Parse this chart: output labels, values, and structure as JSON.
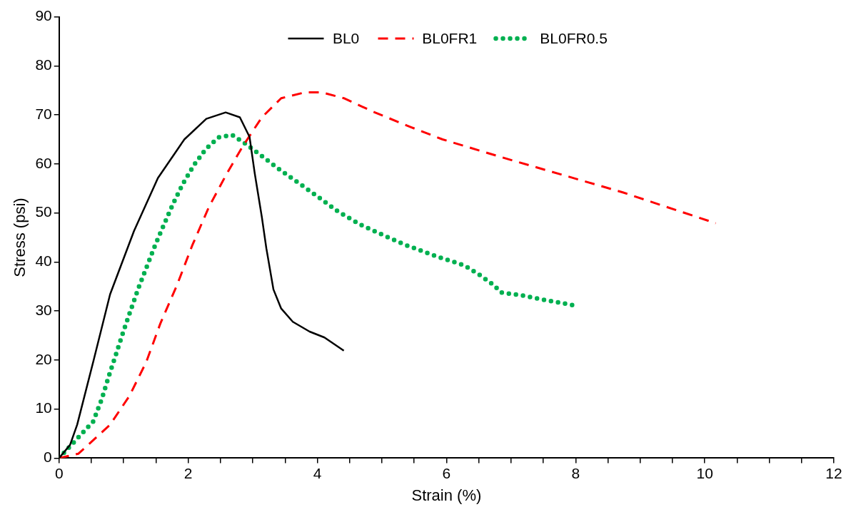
{
  "chart_data": {
    "type": "line",
    "xlabel": "Strain (%)",
    "ylabel": "Stress (psi)",
    "xlim": [
      0,
      12
    ],
    "ylim": [
      0,
      90
    ],
    "xticks": [
      0,
      {
        "value": 0.5,
        "label": null
      },
      {
        "value": 1,
        "label": null
      },
      {
        "value": 1.5,
        "label": null
      },
      2,
      {
        "value": 2.5,
        "label": null
      },
      {
        "value": 3,
        "label": null
      },
      {
        "value": 3.5,
        "label": null
      },
      4,
      {
        "value": 4.5,
        "label": null
      },
      {
        "value": 5,
        "label": null
      },
      {
        "value": 5.5,
        "label": null
      },
      6,
      {
        "value": 6.5,
        "label": null
      },
      {
        "value": 7,
        "label": null
      },
      {
        "value": 7.5,
        "label": null
      },
      8,
      {
        "value": 8.5,
        "label": null
      },
      {
        "value": 9,
        "label": null
      },
      {
        "value": 9.5,
        "label": null
      },
      10,
      {
        "value": 10.5,
        "label": null
      },
      {
        "value": 11,
        "label": null
      },
      {
        "value": 11.5,
        "label": null
      },
      12
    ],
    "yticks": [
      0,
      10,
      20,
      30,
      40,
      50,
      60,
      70,
      80,
      90
    ],
    "legend": "top",
    "series": [
      {
        "name": "BL0",
        "color": "#000000",
        "line_style": "solid",
        "x": [
          0,
          0.17,
          0.28,
          0.53,
          0.79,
          1.16,
          1.53,
          1.94,
          2.28,
          2.58,
          2.8,
          2.95,
          3.03,
          3.14,
          3.21,
          3.32,
          3.44,
          3.62,
          3.88,
          4.11,
          4.41
        ],
        "values": [
          0,
          2.7,
          6.8,
          19.7,
          33.4,
          46.3,
          57.1,
          65.0,
          69.2,
          70.5,
          69.5,
          65.5,
          58.1,
          49.2,
          42.8,
          34.4,
          30.5,
          27.8,
          25.8,
          24.6,
          21.9
        ]
      },
      {
        "name": "BL0FR1",
        "color": "#ff0000",
        "line_style": "dashed",
        "x": [
          0,
          0.3,
          0.79,
          1.09,
          1.35,
          1.57,
          1.83,
          2.06,
          2.32,
          2.58,
          2.84,
          3.14,
          3.44,
          3.81,
          4.07,
          4.41,
          4.89,
          5.45,
          5.94,
          6.87,
          8.73,
          10.17
        ],
        "values": [
          0,
          0.9,
          6.8,
          12.7,
          19.6,
          27.5,
          35.4,
          43.3,
          51.2,
          57.6,
          63.5,
          69.5,
          73.4,
          74.6,
          74.6,
          73.4,
          70.5,
          67.5,
          65.0,
          61.3,
          54.2,
          47.9
        ]
      },
      {
        "name": "BL0FR0.5",
        "color": "#00b050",
        "line_style": "dotted",
        "x": [
          0,
          0.53,
          0.66,
          0.77,
          0.88,
          0.99,
          1.11,
          1.23,
          1.36,
          1.49,
          1.63,
          1.77,
          1.92,
          2.09,
          2.27,
          2.47,
          2.68,
          2.9,
          3.09,
          3.39,
          3.7,
          4.02,
          4.33,
          4.67,
          5.0,
          5.34,
          5.81,
          6.28,
          6.52,
          6.74,
          6.84,
          7.21,
          7.58,
          7.96
        ],
        "values": [
          0,
          7.5,
          12.0,
          16.7,
          21.1,
          25.6,
          30.2,
          34.7,
          39.1,
          43.5,
          47.8,
          52.0,
          56.0,
          59.8,
          63.0,
          65.4,
          65.9,
          64.0,
          62.1,
          59.1,
          56.2,
          53.2,
          50.2,
          47.6,
          45.6,
          43.6,
          41.3,
          39.3,
          37.3,
          35.2,
          33.8,
          33.1,
          32.1,
          31.2
        ]
      }
    ]
  }
}
